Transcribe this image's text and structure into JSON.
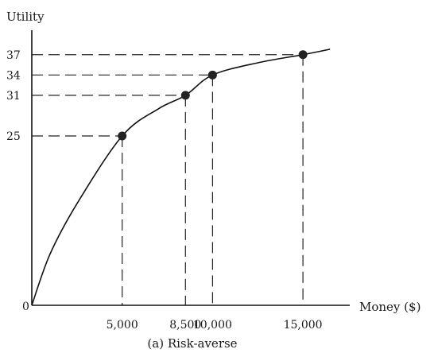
{
  "chart_data": {
    "type": "line",
    "ylabel": "Utility",
    "xlabel": "Money ($)",
    "caption": "(a) Risk-averse",
    "origin_label": "0",
    "xlim": [
      0,
      17500
    ],
    "ylim": [
      0,
      40
    ],
    "grid": false,
    "points": [
      {
        "x": 5000,
        "y": 25,
        "x_label": "5,000",
        "y_label": "25"
      },
      {
        "x": 8500,
        "y": 31,
        "x_label": "8,500",
        "y_label": "31"
      },
      {
        "x": 10000,
        "y": 34,
        "x_label": "10,000",
        "y_label": "34"
      },
      {
        "x": 15000,
        "y": 37,
        "x_label": "15,000",
        "y_label": "37"
      }
    ],
    "curve": [
      {
        "x": 0,
        "y": 0
      },
      {
        "x": 1000,
        "y": 7.5
      },
      {
        "x": 2500,
        "y": 15
      },
      {
        "x": 5000,
        "y": 25
      },
      {
        "x": 7000,
        "y": 29
      },
      {
        "x": 8500,
        "y": 31
      },
      {
        "x": 10000,
        "y": 34
      },
      {
        "x": 12500,
        "y": 35.8
      },
      {
        "x": 15000,
        "y": 37
      },
      {
        "x": 16500,
        "y": 37.8
      }
    ]
  }
}
